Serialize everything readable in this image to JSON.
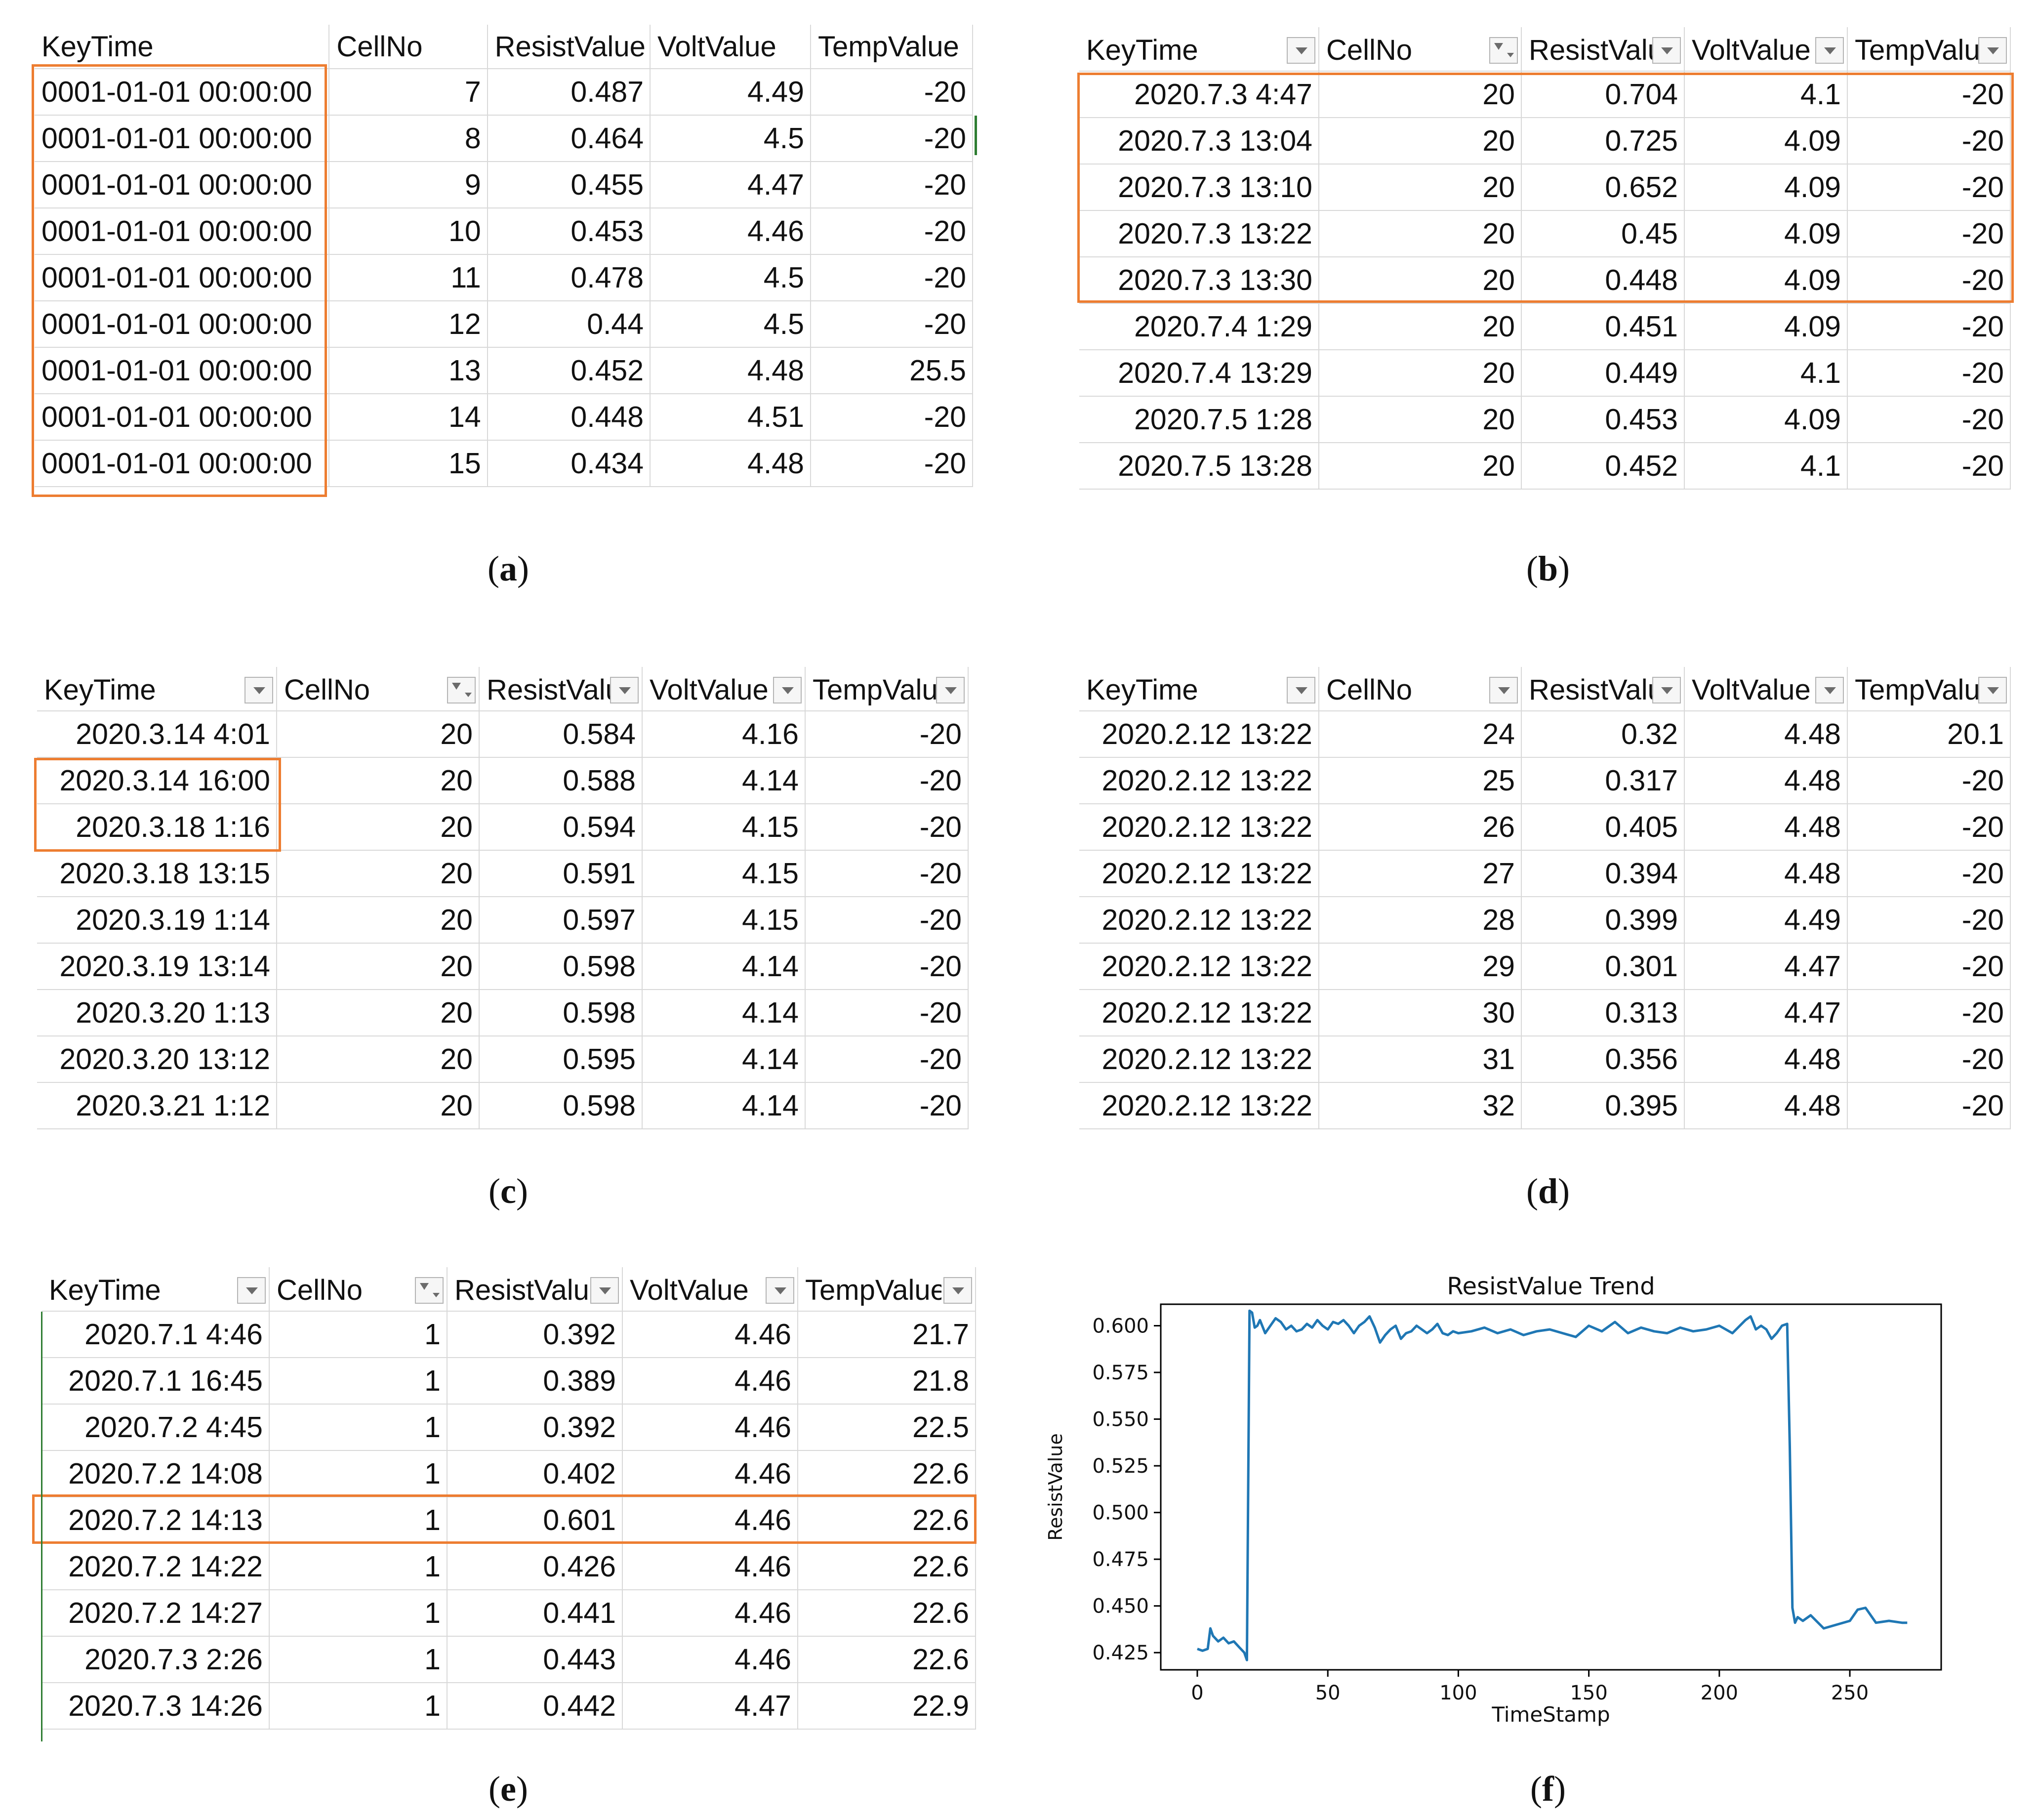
{
  "panels": {
    "a": {
      "caption_letter": "a",
      "headers": [
        "KeyTime",
        "CellNo",
        "ResistValue",
        "VoltValue",
        "TempValue"
      ],
      "rows": [
        [
          "0001-01-01 00:00:00",
          "7",
          "0.487",
          "4.49",
          "-20"
        ],
        [
          "0001-01-01 00:00:00",
          "8",
          "0.464",
          "4.5",
          "-20"
        ],
        [
          "0001-01-01 00:00:00",
          "9",
          "0.455",
          "4.47",
          "-20"
        ],
        [
          "0001-01-01 00:00:00",
          "10",
          "0.453",
          "4.46",
          "-20"
        ],
        [
          "0001-01-01 00:00:00",
          "11",
          "0.478",
          "4.5",
          "-20"
        ],
        [
          "0001-01-01 00:00:00",
          "12",
          "0.44",
          "4.5",
          "-20"
        ],
        [
          "0001-01-01 00:00:00",
          "13",
          "0.452",
          "4.48",
          "25.5"
        ],
        [
          "0001-01-01 00:00:00",
          "14",
          "0.448",
          "4.51",
          "-20"
        ],
        [
          "0001-01-01 00:00:00",
          "15",
          "0.434",
          "4.48",
          "-20"
        ]
      ]
    },
    "b": {
      "caption_letter": "b",
      "headers": [
        "KeyTime",
        "CellNo",
        "ResistValue",
        "VoltValue",
        "TempValue"
      ],
      "rows": [
        [
          "2020.7.3 4:47",
          "20",
          "0.704",
          "4.1",
          "-20"
        ],
        [
          "2020.7.3 13:04",
          "20",
          "0.725",
          "4.09",
          "-20"
        ],
        [
          "2020.7.3 13:10",
          "20",
          "0.652",
          "4.09",
          "-20"
        ],
        [
          "2020.7.3 13:22",
          "20",
          "0.45",
          "4.09",
          "-20"
        ],
        [
          "2020.7.3 13:30",
          "20",
          "0.448",
          "4.09",
          "-20"
        ],
        [
          "2020.7.4 1:29",
          "20",
          "0.451",
          "4.09",
          "-20"
        ],
        [
          "2020.7.4 13:29",
          "20",
          "0.449",
          "4.1",
          "-20"
        ],
        [
          "2020.7.5 1:28",
          "20",
          "0.453",
          "4.09",
          "-20"
        ],
        [
          "2020.7.5 13:28",
          "20",
          "0.452",
          "4.1",
          "-20"
        ]
      ]
    },
    "c": {
      "caption_letter": "c",
      "headers": [
        "KeyTime",
        "CellNo",
        "ResistValue",
        "VoltValue",
        "TempValue"
      ],
      "rows": [
        [
          "2020.3.14 4:01",
          "20",
          "0.584",
          "4.16",
          "-20"
        ],
        [
          "2020.3.14 16:00",
          "20",
          "0.588",
          "4.14",
          "-20"
        ],
        [
          "2020.3.18 1:16",
          "20",
          "0.594",
          "4.15",
          "-20"
        ],
        [
          "2020.3.18 13:15",
          "20",
          "0.591",
          "4.15",
          "-20"
        ],
        [
          "2020.3.19 1:14",
          "20",
          "0.597",
          "4.15",
          "-20"
        ],
        [
          "2020.3.19 13:14",
          "20",
          "0.598",
          "4.14",
          "-20"
        ],
        [
          "2020.3.20 1:13",
          "20",
          "0.598",
          "4.14",
          "-20"
        ],
        [
          "2020.3.20 13:12",
          "20",
          "0.595",
          "4.14",
          "-20"
        ],
        [
          "2020.3.21 1:12",
          "20",
          "0.598",
          "4.14",
          "-20"
        ]
      ]
    },
    "d": {
      "caption_letter": "d",
      "headers": [
        "KeyTime",
        "CellNo",
        "ResistValue",
        "VoltValue",
        "TempValue"
      ],
      "rows": [
        [
          "2020.2.12 13:22",
          "24",
          "0.32",
          "4.48",
          "20.1"
        ],
        [
          "2020.2.12 13:22",
          "25",
          "0.317",
          "4.48",
          "-20"
        ],
        [
          "2020.2.12 13:22",
          "26",
          "0.405",
          "4.48",
          "-20"
        ],
        [
          "2020.2.12 13:22",
          "27",
          "0.394",
          "4.48",
          "-20"
        ],
        [
          "2020.2.12 13:22",
          "28",
          "0.399",
          "4.49",
          "-20"
        ],
        [
          "2020.2.12 13:22",
          "29",
          "0.301",
          "4.47",
          "-20"
        ],
        [
          "2020.2.12 13:22",
          "30",
          "0.313",
          "4.47",
          "-20"
        ],
        [
          "2020.2.12 13:22",
          "31",
          "0.356",
          "4.48",
          "-20"
        ],
        [
          "2020.2.12 13:22",
          "32",
          "0.395",
          "4.48",
          "-20"
        ]
      ]
    },
    "e": {
      "caption_letter": "e",
      "headers": [
        "KeyTime",
        "CellNo",
        "ResistValue",
        "VoltValue",
        "TempValue"
      ],
      "rows": [
        [
          "2020.7.1 4:46",
          "1",
          "0.392",
          "4.46",
          "21.7"
        ],
        [
          "2020.7.1 16:45",
          "1",
          "0.389",
          "4.46",
          "21.8"
        ],
        [
          "2020.7.2 4:45",
          "1",
          "0.392",
          "4.46",
          "22.5"
        ],
        [
          "2020.7.2 14:08",
          "1",
          "0.402",
          "4.46",
          "22.6"
        ],
        [
          "2020.7.2 14:13",
          "1",
          "0.601",
          "4.46",
          "22.6"
        ],
        [
          "2020.7.2 14:22",
          "1",
          "0.426",
          "4.46",
          "22.6"
        ],
        [
          "2020.7.2 14:27",
          "1",
          "0.441",
          "4.46",
          "22.6"
        ],
        [
          "2020.7.3 2:26",
          "1",
          "0.443",
          "4.46",
          "22.6"
        ],
        [
          "2020.7.3 14:26",
          "1",
          "0.442",
          "4.47",
          "22.9"
        ]
      ]
    },
    "f": {
      "caption_letter": "f"
    }
  },
  "chart_data": {
    "type": "line",
    "title": "ResistValue Trend",
    "xlabel": "TimeStamp",
    "ylabel": "ResistValue",
    "xlim": [
      -14,
      285
    ],
    "ylim": [
      0.4158,
      0.6115
    ],
    "xticks": [
      0,
      50,
      100,
      150,
      200,
      250
    ],
    "yticks": [
      0.425,
      0.45,
      0.475,
      0.5,
      0.525,
      0.55,
      0.575,
      0.6
    ],
    "ytick_labels": [
      "0.425",
      "0.450",
      "0.475",
      "0.500",
      "0.525",
      "0.550",
      "0.575",
      "0.600"
    ],
    "series": [
      {
        "name": "ResistValue",
        "color": "#1f77b4",
        "x": [
          0,
          2,
          4,
          5,
          6,
          8,
          10,
          12,
          14,
          16,
          18,
          19,
          20,
          21,
          22,
          23,
          24,
          26,
          28,
          30,
          32,
          34,
          36,
          38,
          40,
          42,
          44,
          46,
          48,
          50,
          52,
          54,
          56,
          58,
          60,
          62,
          64,
          66,
          68,
          70,
          72,
          74,
          76,
          78,
          80,
          82,
          84,
          86,
          88,
          90,
          92,
          94,
          96,
          98,
          100,
          105,
          110,
          115,
          120,
          125,
          130,
          135,
          140,
          145,
          150,
          155,
          160,
          165,
          170,
          175,
          180,
          185,
          190,
          195,
          200,
          205,
          210,
          212,
          214,
          216,
          218,
          220,
          222,
          224,
          226,
          227,
          228,
          229,
          230,
          232,
          235,
          240,
          245,
          250,
          253,
          256,
          260,
          265,
          270,
          272
        ],
        "y": [
          0.427,
          0.426,
          0.427,
          0.438,
          0.434,
          0.431,
          0.433,
          0.43,
          0.431,
          0.428,
          0.425,
          0.421,
          0.608,
          0.607,
          0.599,
          0.6,
          0.603,
          0.596,
          0.6,
          0.604,
          0.602,
          0.598,
          0.6,
          0.597,
          0.598,
          0.601,
          0.599,
          0.603,
          0.6,
          0.598,
          0.602,
          0.601,
          0.603,
          0.6,
          0.596,
          0.6,
          0.602,
          0.605,
          0.599,
          0.591,
          0.595,
          0.598,
          0.6,
          0.593,
          0.596,
          0.597,
          0.6,
          0.598,
          0.596,
          0.598,
          0.601,
          0.596,
          0.595,
          0.597,
          0.596,
          0.597,
          0.599,
          0.596,
          0.598,
          0.595,
          0.597,
          0.598,
          0.596,
          0.594,
          0.6,
          0.597,
          0.602,
          0.596,
          0.599,
          0.597,
          0.596,
          0.599,
          0.597,
          0.598,
          0.6,
          0.596,
          0.603,
          0.605,
          0.598,
          0.6,
          0.598,
          0.593,
          0.596,
          0.6,
          0.601,
          0.535,
          0.449,
          0.441,
          0.444,
          0.442,
          0.445,
          0.438,
          0.44,
          0.442,
          0.448,
          0.449,
          0.441,
          0.442,
          0.441,
          0.441
        ]
      }
    ]
  }
}
